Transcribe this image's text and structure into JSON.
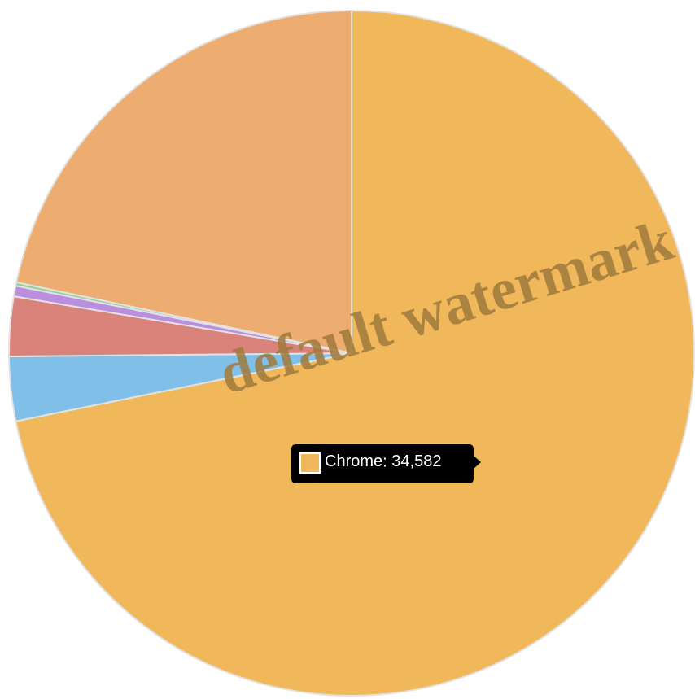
{
  "chart_data": {
    "type": "pie",
    "categories": [
      "Chrome",
      null,
      null,
      null,
      null,
      null
    ],
    "values": [
      34582,
      1460,
      1350,
      240,
      80,
      10440
    ],
    "value_labels": [
      "34,582",
      null,
      null,
      null,
      null,
      null
    ],
    "colors": [
      "#f0b85b",
      "#80bfe8",
      "#d9827a",
      "#bb8fe0",
      "#93d493",
      "#edad70"
    ],
    "start_angle": 0,
    "direction": "clockwise",
    "tooltip_index": 0,
    "watermark": "default watermark"
  }
}
